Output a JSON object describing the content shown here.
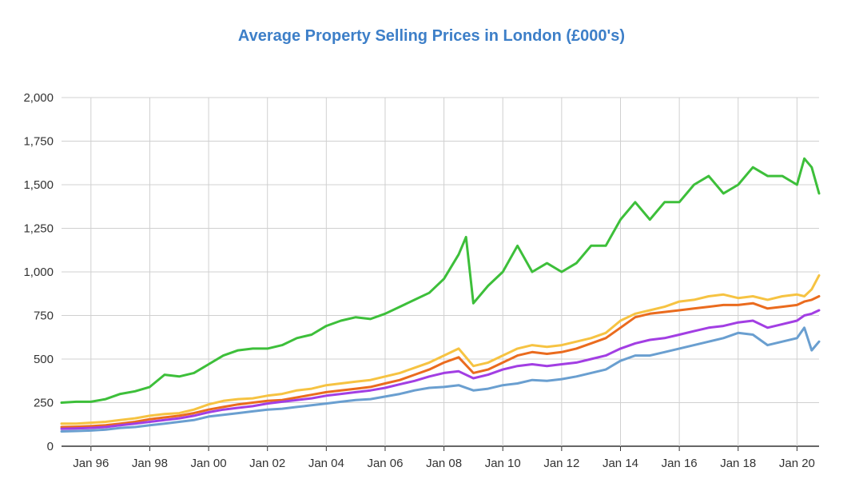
{
  "chart_data": {
    "type": "line",
    "title": "Average Property Selling Prices in London (£000's)",
    "xlabel": "",
    "ylabel": "",
    "x_ticks": [
      "Jan 96",
      "Jan 98",
      "Jan 00",
      "Jan 02",
      "Jan 04",
      "Jan 06",
      "Jan 08",
      "Jan 10",
      "Jan 12",
      "Jan 14",
      "Jan 16",
      "Jan 18",
      "Jan 20"
    ],
    "y_ticks": [
      "0",
      "250",
      "500",
      "750",
      "1,000",
      "1,250",
      "1,500",
      "1,750",
      "2,000"
    ],
    "ylim": [
      0,
      2000
    ],
    "xlim": [
      1995.0,
      2020.75
    ],
    "grid": true,
    "legend": "none",
    "series": [
      {
        "color": "#3dbf3a",
        "x": [
          1995.0,
          1995.5,
          1996.0,
          1996.5,
          1997.0,
          1997.5,
          1998.0,
          1998.5,
          1999.0,
          1999.5,
          2000.0,
          2000.5,
          2001.0,
          2001.5,
          2002.0,
          2002.5,
          2003.0,
          2003.5,
          2004.0,
          2004.5,
          2005.0,
          2005.5,
          2006.0,
          2006.5,
          2007.0,
          2007.5,
          2008.0,
          2008.5,
          2008.75,
          2009.0,
          2009.5,
          2010.0,
          2010.5,
          2011.0,
          2011.5,
          2012.0,
          2012.5,
          2013.0,
          2013.5,
          2014.0,
          2014.5,
          2015.0,
          2015.5,
          2016.0,
          2016.5,
          2017.0,
          2017.5,
          2018.0,
          2018.5,
          2019.0,
          2019.5,
          2020.0,
          2020.25,
          2020.5,
          2020.75
        ],
        "y": [
          250,
          255,
          255,
          270,
          300,
          315,
          340,
          410,
          400,
          420,
          470,
          520,
          550,
          560,
          560,
          580,
          620,
          640,
          690,
          720,
          740,
          730,
          760,
          800,
          840,
          880,
          960,
          1100,
          1200,
          820,
          920,
          1000,
          1150,
          1000,
          1050,
          1000,
          1050,
          1150,
          1150,
          1300,
          1400,
          1300,
          1400,
          1400,
          1500,
          1550,
          1450,
          1500,
          1600,
          1550,
          1550,
          1500,
          1650,
          1600,
          1450
        ]
      },
      {
        "color": "#f6c342",
        "x": [
          1995.0,
          1995.5,
          1996.0,
          1996.5,
          1997.0,
          1997.5,
          1998.0,
          1998.5,
          1999.0,
          1999.5,
          2000.0,
          2000.5,
          2001.0,
          2001.5,
          2002.0,
          2002.5,
          2003.0,
          2003.5,
          2004.0,
          2004.5,
          2005.0,
          2005.5,
          2006.0,
          2006.5,
          2007.0,
          2007.5,
          2008.0,
          2008.5,
          2009.0,
          2009.5,
          2010.0,
          2010.5,
          2011.0,
          2011.5,
          2012.0,
          2012.5,
          2013.0,
          2013.5,
          2014.0,
          2014.5,
          2015.0,
          2015.5,
          2016.0,
          2016.5,
          2017.0,
          2017.5,
          2018.0,
          2018.5,
          2019.0,
          2019.5,
          2020.0,
          2020.25,
          2020.5,
          2020.75
        ],
        "y": [
          130,
          130,
          135,
          140,
          150,
          160,
          175,
          185,
          190,
          210,
          240,
          260,
          270,
          275,
          290,
          300,
          320,
          330,
          350,
          360,
          370,
          380,
          400,
          420,
          450,
          480,
          520,
          560,
          460,
          480,
          520,
          560,
          580,
          570,
          580,
          600,
          620,
          650,
          720,
          760,
          780,
          800,
          830,
          840,
          860,
          870,
          850,
          860,
          840,
          860,
          870,
          860,
          900,
          980
        ]
      },
      {
        "color": "#ea6b1e",
        "x": [
          1995.0,
          1995.5,
          1996.0,
          1996.5,
          1997.0,
          1997.5,
          1998.0,
          1998.5,
          1999.0,
          1999.5,
          2000.0,
          2000.5,
          2001.0,
          2001.5,
          2002.0,
          2002.5,
          2003.0,
          2003.5,
          2004.0,
          2004.5,
          2005.0,
          2005.5,
          2006.0,
          2006.5,
          2007.0,
          2007.5,
          2008.0,
          2008.5,
          2009.0,
          2009.5,
          2010.0,
          2010.5,
          2011.0,
          2011.5,
          2012.0,
          2012.5,
          2013.0,
          2013.5,
          2014.0,
          2014.5,
          2015.0,
          2015.5,
          2016.0,
          2016.5,
          2017.0,
          2017.5,
          2018.0,
          2018.5,
          2019.0,
          2019.5,
          2020.0,
          2020.25,
          2020.5,
          2020.75
        ],
        "y": [
          110,
          112,
          115,
          120,
          130,
          140,
          155,
          165,
          175,
          190,
          210,
          225,
          240,
          250,
          260,
          265,
          280,
          295,
          310,
          320,
          330,
          340,
          360,
          380,
          410,
          440,
          480,
          510,
          420,
          440,
          480,
          520,
          540,
          530,
          540,
          560,
          590,
          620,
          680,
          740,
          760,
          770,
          780,
          790,
          800,
          810,
          810,
          820,
          790,
          800,
          810,
          830,
          840,
          860
        ]
      },
      {
        "color": "#a23ee3",
        "x": [
          1995.0,
          1995.5,
          1996.0,
          1996.5,
          1997.0,
          1997.5,
          1998.0,
          1998.5,
          1999.0,
          1999.5,
          2000.0,
          2000.5,
          2001.0,
          2001.5,
          2002.0,
          2002.5,
          2003.0,
          2003.5,
          2004.0,
          2004.5,
          2005.0,
          2005.5,
          2006.0,
          2006.5,
          2007.0,
          2007.5,
          2008.0,
          2008.5,
          2009.0,
          2009.5,
          2010.0,
          2010.5,
          2011.0,
          2011.5,
          2012.0,
          2012.5,
          2013.0,
          2013.5,
          2014.0,
          2014.5,
          2015.0,
          2015.5,
          2016.0,
          2016.5,
          2017.0,
          2017.5,
          2018.0,
          2018.5,
          2019.0,
          2019.5,
          2020.0,
          2020.25,
          2020.5,
          2020.75
        ],
        "y": [
          100,
          102,
          105,
          110,
          120,
          130,
          140,
          150,
          160,
          175,
          195,
          210,
          220,
          230,
          245,
          255,
          265,
          275,
          290,
          300,
          310,
          320,
          335,
          355,
          375,
          400,
          420,
          430,
          390,
          410,
          440,
          460,
          470,
          460,
          470,
          480,
          500,
          520,
          560,
          590,
          610,
          620,
          640,
          660,
          680,
          690,
          710,
          720,
          680,
          700,
          720,
          750,
          760,
          780
        ]
      },
      {
        "color": "#6a9fd0",
        "x": [
          1995.0,
          1995.5,
          1996.0,
          1996.5,
          1997.0,
          1997.5,
          1998.0,
          1998.5,
          1999.0,
          1999.5,
          2000.0,
          2000.5,
          2001.0,
          2001.5,
          2002.0,
          2002.5,
          2003.0,
          2003.5,
          2004.0,
          2004.5,
          2005.0,
          2005.5,
          2006.0,
          2006.5,
          2007.0,
          2007.5,
          2008.0,
          2008.5,
          2009.0,
          2009.5,
          2010.0,
          2010.5,
          2011.0,
          2011.5,
          2012.0,
          2012.5,
          2013.0,
          2013.5,
          2014.0,
          2014.5,
          2015.0,
          2015.5,
          2016.0,
          2016.5,
          2017.0,
          2017.5,
          2018.0,
          2018.5,
          2019.0,
          2019.5,
          2020.0,
          2020.25,
          2020.5,
          2020.75
        ],
        "y": [
          85,
          87,
          90,
          95,
          105,
          110,
          120,
          130,
          140,
          150,
          170,
          180,
          190,
          200,
          210,
          215,
          225,
          235,
          245,
          255,
          265,
          270,
          285,
          300,
          320,
          335,
          340,
          350,
          320,
          330,
          350,
          360,
          380,
          375,
          385,
          400,
          420,
          440,
          490,
          520,
          520,
          540,
          560,
          580,
          600,
          620,
          650,
          640,
          580,
          600,
          620,
          680,
          550,
          600
        ]
      }
    ]
  }
}
